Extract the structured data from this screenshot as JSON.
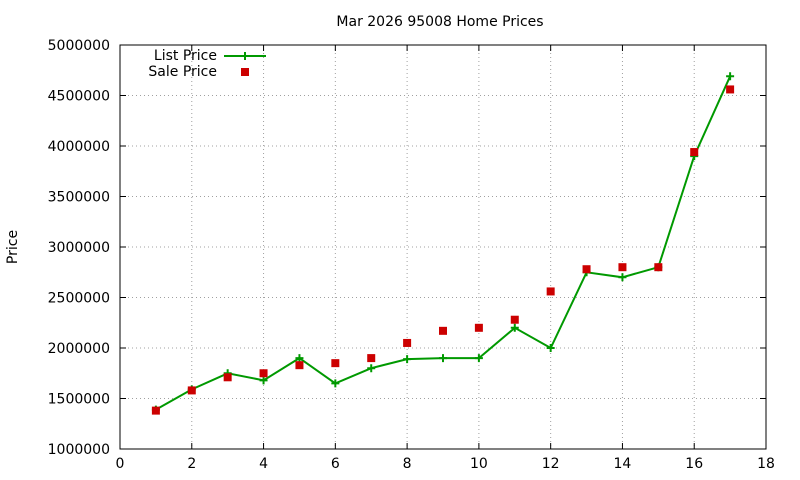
{
  "chart_data": {
    "type": "line",
    "title": "Mar 2026 95008 Home Prices",
    "xlabel": "",
    "ylabel": "Price",
    "xlim": [
      0,
      18
    ],
    "ylim": [
      1000000,
      5000000
    ],
    "xticks": [
      0,
      2,
      4,
      6,
      8,
      10,
      12,
      14,
      16,
      18
    ],
    "yticks": [
      1000000,
      1500000,
      2000000,
      2500000,
      3000000,
      3500000,
      4000000,
      4500000,
      5000000
    ],
    "grid": true,
    "legend": "top-left",
    "series": [
      {
        "name": "List Price",
        "style": "line-plus",
        "color": "#009900",
        "x": [
          1,
          2,
          3,
          4,
          5,
          6,
          7,
          8,
          9,
          10,
          11,
          12,
          13,
          14,
          15,
          16,
          17
        ],
        "values": [
          1390000,
          1590000,
          1750000,
          1680000,
          1900000,
          1650000,
          1800000,
          1890000,
          1900000,
          1900000,
          2200000,
          2000000,
          2750000,
          2700000,
          2800000,
          3900000,
          4690000
        ]
      },
      {
        "name": "Sale Price",
        "style": "square",
        "color": "#cc0000",
        "x": [
          1,
          2,
          3,
          4,
          5,
          6,
          7,
          8,
          9,
          10,
          11,
          12,
          13,
          14,
          15,
          16,
          17
        ],
        "values": [
          1380000,
          1580000,
          1710000,
          1750000,
          1830000,
          1850000,
          1900000,
          2050000,
          2170000,
          2200000,
          2280000,
          2560000,
          2780000,
          2800000,
          2800000,
          3940000,
          4560000
        ]
      }
    ]
  }
}
